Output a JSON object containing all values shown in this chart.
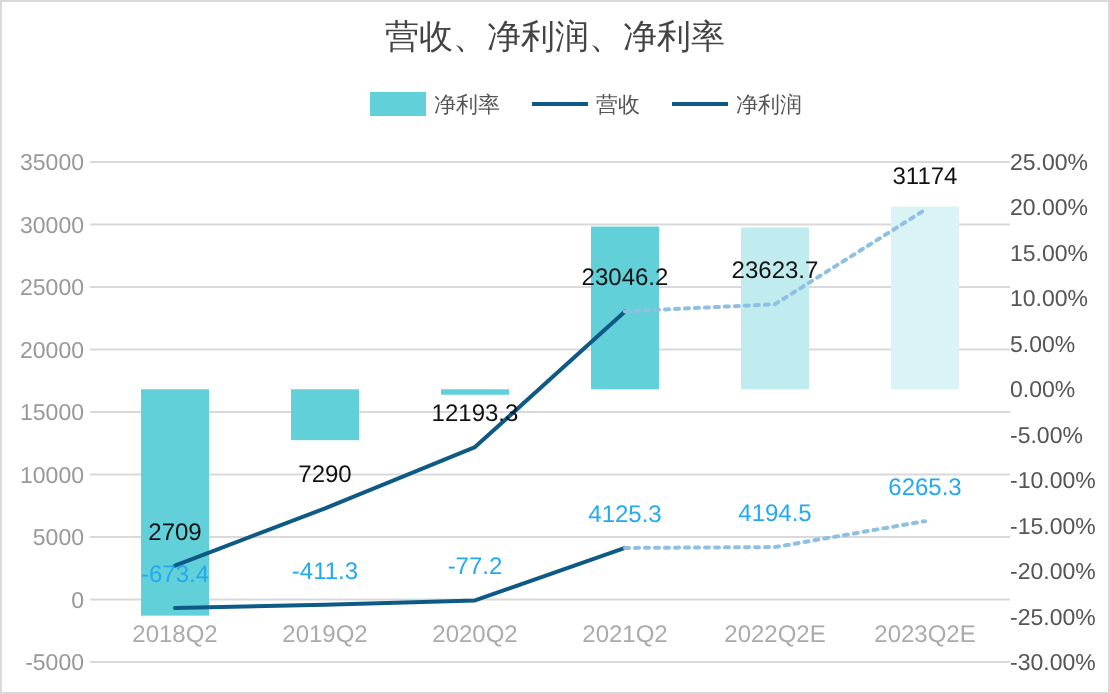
{
  "chart_data": {
    "type": "bar",
    "title": "营收、净利润、净利率",
    "categories": [
      "2018Q2",
      "2019Q2",
      "2020Q2",
      "2021Q2",
      "2022Q2E",
      "2023Q2E"
    ],
    "legend": "top",
    "grid": "y",
    "ylim": [
      -5000,
      35000
    ],
    "yticks": [
      -5000,
      0,
      5000,
      10000,
      15000,
      20000,
      25000,
      30000,
      35000
    ],
    "y2lim": [
      -30,
      25
    ],
    "y2ticks": [
      {
        "value": -30,
        "label": "-30.00%"
      },
      {
        "value": -25,
        "label": "-25.00%"
      },
      {
        "value": -20,
        "label": "-20.00%"
      },
      {
        "value": -15,
        "label": "-15.00%"
      },
      {
        "value": -10,
        "label": "-10.00%"
      },
      {
        "value": -5,
        "label": "-5.00%"
      },
      {
        "value": 0,
        "label": "0.00%"
      },
      {
        "value": 5,
        "label": "5.00%"
      },
      {
        "value": 10,
        "label": "10.00%"
      },
      {
        "value": 15,
        "label": "15.00%"
      },
      {
        "value": 20,
        "label": "20.00%"
      },
      {
        "value": 25,
        "label": "25.00%"
      }
    ],
    "series": [
      {
        "name": "净利率",
        "axis": "y2",
        "colors": [
          "#62d0d9",
          "#62d0d9",
          "#62d0d9",
          "#62d0d9",
          "#c0ecef",
          "#daf4f5"
        ],
        "values": [
          -24.9,
          -5.6,
          -0.6,
          17.9,
          17.8,
          20.1
        ]
      },
      {
        "name": "营收",
        "type": "line",
        "color": "#0e5a85",
        "line_style": "solid",
        "values": [
          2709,
          7290,
          12193.3,
          23046.2,
          null,
          null
        ],
        "value_labels": [
          "2709",
          "7290",
          "12193.3",
          "23046.2",
          null,
          null
        ]
      },
      {
        "type": "line",
        "color": "#8fc0e3",
        "line_style": "dotted",
        "values": [
          null,
          null,
          null,
          23046.2,
          23623.7,
          31174
        ],
        "value_labels": [
          null,
          null,
          null,
          null,
          "23623.7",
          "31174"
        ]
      },
      {
        "name": "净利润",
        "type": "line",
        "color": "#0e5a85",
        "line_style": "solid",
        "values": [
          -673.4,
          -411.3,
          -77.2,
          4125.3,
          null,
          null
        ],
        "value_labels": [
          "-673.4",
          "-411.3",
          "-77.2",
          "4125.3",
          null,
          null
        ]
      },
      {
        "type": "line",
        "color": "#8fc0e3",
        "line_style": "dotted",
        "values": [
          null,
          null,
          null,
          4125.3,
          4194.5,
          6265.3
        ],
        "value_labels": [
          null,
          null,
          null,
          null,
          "4194.5",
          "6265.3"
        ]
      }
    ]
  }
}
